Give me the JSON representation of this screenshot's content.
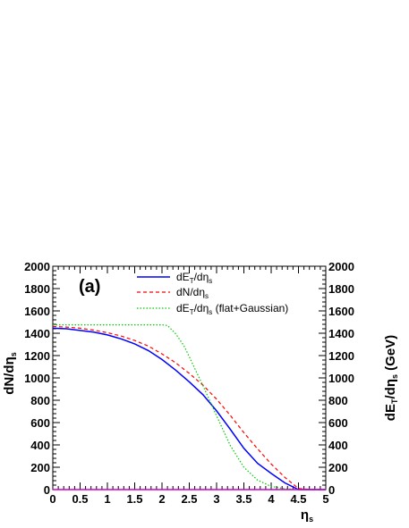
{
  "chart_data": {
    "type": "line",
    "panel_label": "(a)",
    "xlabel": "η",
    "xlabel_sub": "s",
    "ylabel_left": "dN/dη",
    "ylabel_left_sub": "s",
    "ylabel_right": "dE",
    "ylabel_right_sub1": "T",
    "ylabel_right_mid": "/dη",
    "ylabel_right_sub2": "s",
    "ylabel_right_unit": " (GeV)",
    "xlim": [
      0,
      5
    ],
    "ylim": [
      0,
      2000
    ],
    "x_ticks": [
      "0",
      "0.5",
      "1",
      "1.5",
      "2",
      "2.5",
      "3",
      "3.5",
      "4",
      "4.5",
      "5"
    ],
    "y_ticks": [
      "0",
      "200",
      "400",
      "600",
      "800",
      "1000",
      "1200",
      "1400",
      "1600",
      "1800",
      "2000"
    ],
    "grid": false,
    "legend_position": "top-center",
    "series": [
      {
        "legend_main": "dE",
        "legend_sub1": "T",
        "legend_mid": "/dη",
        "legend_sub2": "s",
        "legend_tail": "",
        "color": "#0000ff",
        "style": "solid",
        "x": [
          0,
          0.25,
          0.5,
          0.75,
          1.0,
          1.25,
          1.5,
          1.75,
          2.0,
          2.25,
          2.5,
          2.75,
          3.0,
          3.25,
          3.5,
          3.75,
          4.0,
          4.25,
          4.5,
          4.75,
          5.0
        ],
        "y": [
          1445,
          1440,
          1425,
          1410,
          1385,
          1350,
          1305,
          1245,
          1165,
          1070,
          965,
          850,
          705,
          540,
          370,
          235,
          145,
          60,
          0,
          0,
          0
        ]
      },
      {
        "legend_main": "dN/dη",
        "legend_sub1": "",
        "legend_mid": "",
        "legend_sub2": "s",
        "legend_tail": "",
        "color": "#ff0000",
        "style": "dashed",
        "x": [
          0,
          0.25,
          0.5,
          0.75,
          1.0,
          1.25,
          1.5,
          1.75,
          2.0,
          2.25,
          2.5,
          2.75,
          3.0,
          3.25,
          3.5,
          3.75,
          4.0,
          4.25,
          4.5,
          4.75,
          5.0
        ],
        "y": [
          1460,
          1455,
          1445,
          1428,
          1405,
          1375,
          1335,
          1285,
          1215,
          1135,
          1040,
          935,
          810,
          665,
          510,
          365,
          230,
          110,
          10,
          0,
          0
        ]
      },
      {
        "legend_main": "dE",
        "legend_sub1": "T",
        "legend_mid": "/dη",
        "legend_sub2": "s",
        "legend_tail": " (flat+Gaussian)",
        "color": "#00cc00",
        "style": "dotted",
        "x": [
          0,
          0.5,
          1.0,
          1.5,
          2.0,
          2.1,
          2.25,
          2.4,
          2.5,
          2.6,
          2.75,
          2.9,
          3.0,
          3.25,
          3.5,
          3.75,
          4.0,
          4.25,
          4.5,
          4.75,
          5.0
        ],
        "y": [
          1475,
          1475,
          1475,
          1475,
          1475,
          1470,
          1395,
          1290,
          1190,
          1085,
          930,
          770,
          660,
          395,
          200,
          85,
          28,
          8,
          2,
          0,
          0
        ]
      }
    ]
  }
}
